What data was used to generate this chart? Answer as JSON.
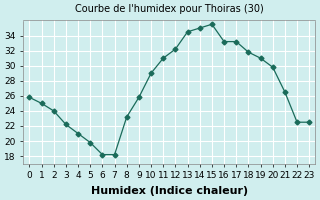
{
  "x": [
    0,
    1,
    2,
    3,
    4,
    5,
    6,
    7,
    8,
    9,
    10,
    11,
    12,
    13,
    14,
    15,
    16,
    17,
    18,
    19,
    20,
    21,
    22,
    23
  ],
  "y": [
    25.8,
    25.0,
    24.0,
    22.2,
    21.0,
    19.8,
    18.2,
    18.2,
    23.2,
    25.8,
    29.0,
    31.0,
    32.2,
    34.5,
    35.0,
    35.5,
    33.2,
    33.2,
    31.8,
    31.0,
    29.8,
    26.5,
    22.5,
    22.5
  ],
  "line_color": "#1a6b5a",
  "marker": "D",
  "marker_size": 2.5,
  "bg_color": "#d0eeee",
  "grid_color": "#ffffff",
  "title": "Courbe de l'humidex pour Thoiras (30)",
  "xlabel": "Humidex (Indice chaleur)",
  "ylim": [
    17,
    36
  ],
  "xlim": [
    -0.5,
    23.5
  ],
  "yticks": [
    18,
    20,
    22,
    24,
    26,
    28,
    30,
    32,
    34
  ],
  "xtick_labels": [
    "0",
    "1",
    "2",
    "3",
    "4",
    "5",
    "6",
    "7",
    "8",
    "9",
    "10",
    "11",
    "12",
    "13",
    "14",
    "15",
    "16",
    "17",
    "18",
    "19",
    "20",
    "21",
    "22",
    "23"
  ],
  "title_fontsize": 7,
  "xlabel_fontsize": 8,
  "tick_fontsize": 6.5
}
